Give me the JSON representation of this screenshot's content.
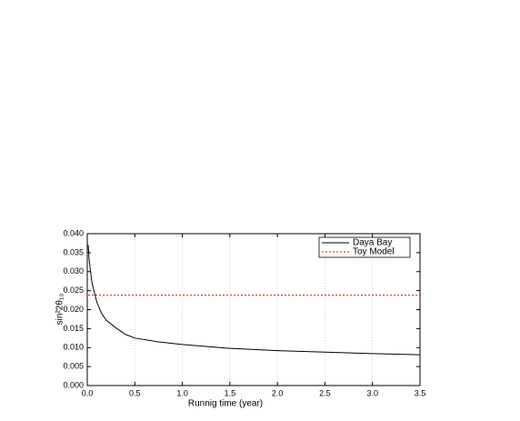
{
  "chart_data": {
    "type": "line",
    "xlabel": "Runnig time (year)",
    "ylabel": "sin²2θ₁₃",
    "x": [
      0.01,
      0.02,
      0.05,
      0.1,
      0.15,
      0.2,
      0.3,
      0.4,
      0.5,
      0.75,
      1.0,
      1.5,
      2.0,
      2.5,
      3.0,
      3.5
    ],
    "series": [
      {
        "name": "Daya Bay",
        "color": "#000000",
        "line_style": "solid",
        "values": [
          0.037,
          0.033,
          0.027,
          0.022,
          0.019,
          0.0172,
          0.0152,
          0.0135,
          0.0125,
          0.0115,
          0.0108,
          0.0098,
          0.0092,
          0.0088,
          0.0084,
          0.0081
        ]
      },
      {
        "name": "Toy Model",
        "color": "#ff0000",
        "line_style": "dashed",
        "values": [
          0.0238,
          0.0238,
          0.0238,
          0.0238,
          0.0238,
          0.0238,
          0.0238,
          0.0238,
          0.0238,
          0.0238,
          0.0238,
          0.0238,
          0.0238,
          0.0238,
          0.0238,
          0.0238
        ]
      }
    ],
    "xlim": [
      0,
      3.5
    ],
    "xticks": [
      {
        "value": 0,
        "label": "0.0"
      },
      0.5,
      {
        "value": 1,
        "label": "1.0"
      },
      1.5,
      {
        "value": 2,
        "label": "2.0"
      },
      2.5,
      {
        "value": 3,
        "label": "3.0"
      },
      3.5
    ],
    "ylim": [
      0,
      0.04
    ],
    "yticks": [
      {
        "value": 0,
        "label": "0.000"
      },
      0.005,
      {
        "value": 0.01,
        "label": "0.010"
      },
      0.015,
      {
        "value": 0.02,
        "label": "0.020"
      },
      0.025,
      {
        "value": 0.03,
        "label": "0.030"
      },
      0.035,
      {
        "value": 0.04,
        "label": "0.040"
      }
    ],
    "grid": "x",
    "legend": "top-right"
  }
}
